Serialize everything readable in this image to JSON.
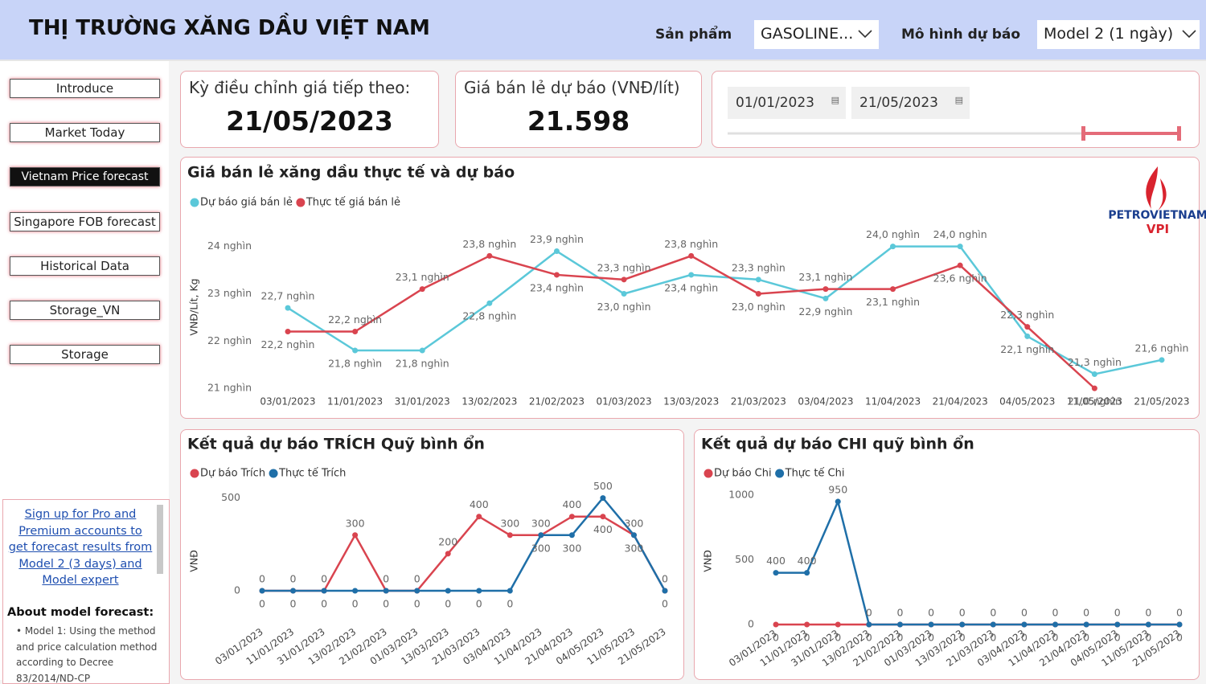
{
  "header": {
    "title": "THỊ TRƯỜNG XĂNG DẦU VIỆT NAM",
    "filters": [
      {
        "label": "Sản phẩm",
        "value": "GASOLINE..."
      },
      {
        "label": "Mô hình dự báo",
        "value": "Model 2 (1 ngày)"
      }
    ]
  },
  "nav": [
    "Introduce",
    "Market Today",
    "Vietnam Price forecast",
    "Singapore FOB forecast",
    "Historical Data",
    "Storage_VN",
    "Storage"
  ],
  "promo": {
    "link": "Sign up for Pro and Premium accounts to get forecast results from Model 2 (3 days) and Model expert",
    "about_title": "About model forecast:",
    "bullets": [
      "Model 1: Using the method and price calculation method according to Decree 83/2014/ND-CP"
    ]
  },
  "kpis": [
    {
      "label": "Kỳ điều chỉnh giá tiếp theo:",
      "value": "21/05/2023"
    },
    {
      "label": "Giá bán lẻ dự báo (VNĐ/lít)",
      "value": "21.598"
    }
  ],
  "date_range": [
    "01/01/2023",
    "21/05/2023"
  ],
  "logo": {
    "name": "PETROVIETNAM",
    "sub": "VPI"
  },
  "chart_data": [
    {
      "type": "line",
      "title": "Giá bán lẻ xăng dầu thực tế và dự báo",
      "ylabel": "VNĐ/Lít, Kg",
      "categories": [
        "03/01/2023",
        "11/01/2023",
        "31/01/2023",
        "13/02/2023",
        "21/02/2023",
        "01/03/2023",
        "13/03/2023",
        "21/03/2023",
        "03/04/2023",
        "11/04/2023",
        "21/04/2023",
        "04/05/2023",
        "11/05/2023",
        "21/05/2023"
      ],
      "series": [
        {
          "name": "Dự báo giá bán lẻ",
          "color": "#5bc8d9",
          "values": [
            22.7,
            21.8,
            21.8,
            22.8,
            23.9,
            23.0,
            23.4,
            23.3,
            22.9,
            24.0,
            24.0,
            22.1,
            21.3,
            21.6
          ],
          "value_labels": [
            "22,7 nghìn",
            "21,8 nghìn",
            "21,8 nghìn",
            "22,8 nghìn",
            "23,9 nghìn",
            "23,0 nghìn",
            "23,4 nghìn",
            "23,3 nghìn",
            "22,9 nghìn",
            "24,0 nghìn",
            "24,0 nghìn",
            "22,1 nghìn",
            "21,3 nghìn",
            "21,6 nghìn"
          ]
        },
        {
          "name": "Thực tế giá bán lẻ",
          "color": "#d9444f",
          "values": [
            22.2,
            22.2,
            23.1,
            23.8,
            23.4,
            23.3,
            23.8,
            23.0,
            23.1,
            23.1,
            23.6,
            22.3,
            21.0,
            null
          ],
          "value_labels": [
            "22,2 nghìn",
            "22,2 nghìn",
            "23,1 nghìn",
            "23,8 nghìn",
            "23,4 nghìn",
            "23,3 nghìn",
            "23,8 nghìn",
            "23,0 nghìn",
            "23,1 nghìn",
            "23,1 nghìn",
            "23,6 nghìn",
            "22,3 nghìn",
            "21,0 nghìn",
            null
          ]
        }
      ],
      "ylim": [
        20.9,
        24.3
      ],
      "yticks": [
        {
          "value": 21,
          "label": "21 nghìn"
        },
        {
          "value": 22,
          "label": "22 nghìn"
        },
        {
          "value": 23,
          "label": "23 nghìn"
        },
        {
          "value": 24,
          "label": "24 nghìn"
        }
      ],
      "legend": "top-left"
    },
    {
      "type": "line",
      "title": "Kết quả dự báo TRÍCH Quỹ bình ổn",
      "ylabel": "VNĐ",
      "categories": [
        "03/01/2023",
        "11/01/2023",
        "31/01/2023",
        "13/02/2023",
        "21/02/2023",
        "01/03/2023",
        "13/03/2023",
        "21/03/2023",
        "03/04/2023",
        "11/04/2023",
        "21/04/2023",
        "04/05/2023",
        "11/05/2023",
        "21/05/2023"
      ],
      "series": [
        {
          "name": "Dự báo Trích",
          "color": "#d9444f",
          "values": [
            0,
            0,
            0,
            300,
            0,
            0,
            200,
            400,
            300,
            300,
            400,
            400,
            300,
            0
          ]
        },
        {
          "name": "Thực tế Trích",
          "color": "#1f6fa8",
          "values": [
            0,
            0,
            0,
            0,
            0,
            0,
            0,
            0,
            0,
            300,
            300,
            500,
            300,
            0
          ]
        }
      ],
      "ylim": [
        0,
        520
      ],
      "yticks": [
        0,
        500
      ],
      "legend": "top-left"
    },
    {
      "type": "line",
      "title": "Kết quả dự báo CHI quỹ bình ổn",
      "ylabel": "VNĐ",
      "categories": [
        "03/01/2023",
        "11/01/2023",
        "31/01/2023",
        "13/02/2023",
        "21/02/2023",
        "01/03/2023",
        "13/03/2023",
        "21/03/2023",
        "03/04/2023",
        "11/04/2023",
        "21/04/2023",
        "04/05/2023",
        "11/05/2023",
        "21/05/2023"
      ],
      "series": [
        {
          "name": "Dự báo Chi",
          "color": "#d9444f",
          "values": [
            0,
            0,
            0,
            0,
            0,
            0,
            0,
            0,
            0,
            0,
            0,
            0,
            0,
            0
          ]
        },
        {
          "name": "Thực tế Chi",
          "color": "#1f6fa8",
          "values": [
            400,
            400,
            950,
            0,
            0,
            0,
            0,
            0,
            0,
            0,
            0,
            0,
            0,
            0
          ]
        }
      ],
      "ylim": [
        0,
        1000
      ],
      "yticks": [
        0,
        500,
        1000
      ],
      "legend": "top-left"
    }
  ]
}
